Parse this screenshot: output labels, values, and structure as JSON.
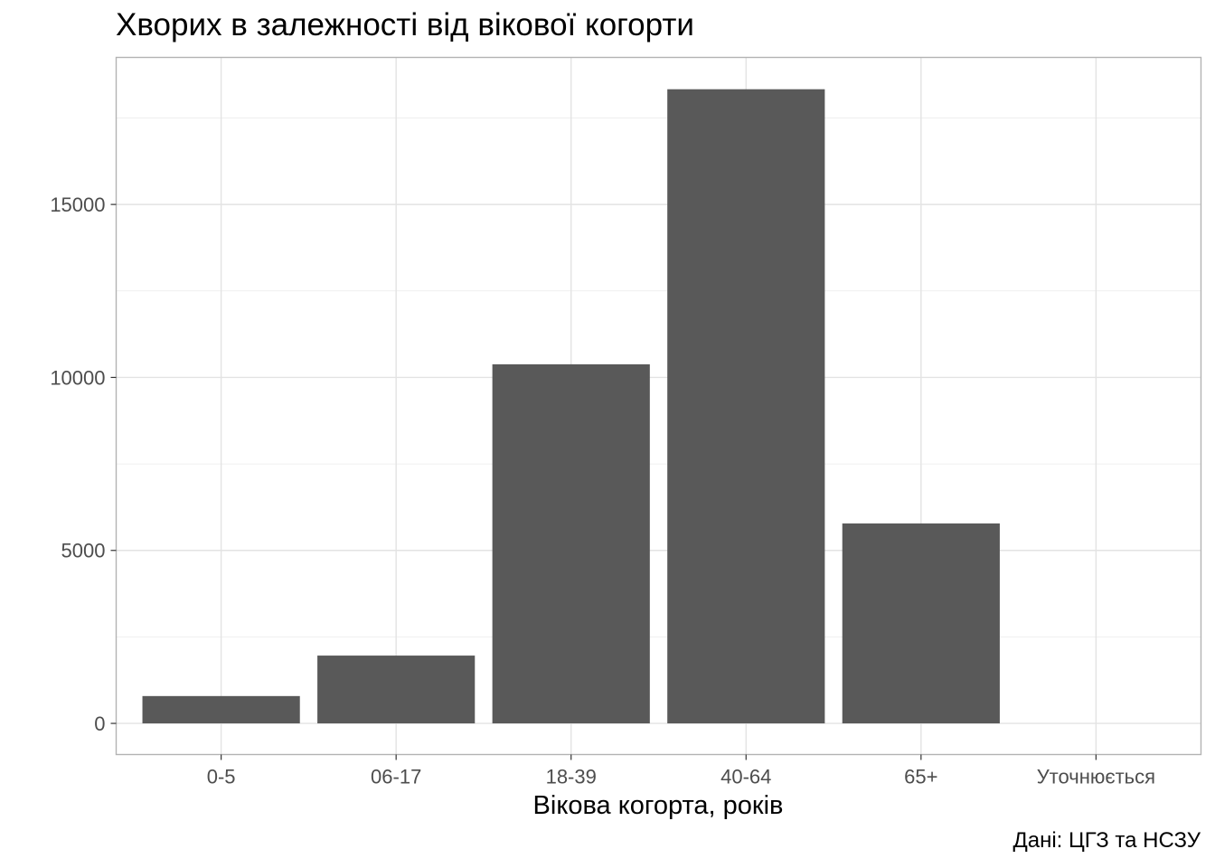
{
  "chart_data": {
    "type": "bar",
    "title": "Хворих в залежності від вікової когорти",
    "xlabel": "Вікова когорта, років",
    "ylabel": "",
    "caption": "Дані: ЦГЗ та НСЗУ",
    "categories": [
      "0-5",
      "06-17",
      "18-39",
      "40-64",
      "65+",
      "Уточнюється"
    ],
    "values": [
      790,
      1960,
      10380,
      18330,
      5780,
      0
    ],
    "ylim": [
      -900,
      19250
    ],
    "yticks": [
      0,
      5000,
      10000,
      15000
    ],
    "ytick_labels": [
      "0",
      "5000",
      "10000",
      "15000"
    ],
    "grid": true,
    "legend": "none",
    "bar_color": "#595959"
  }
}
